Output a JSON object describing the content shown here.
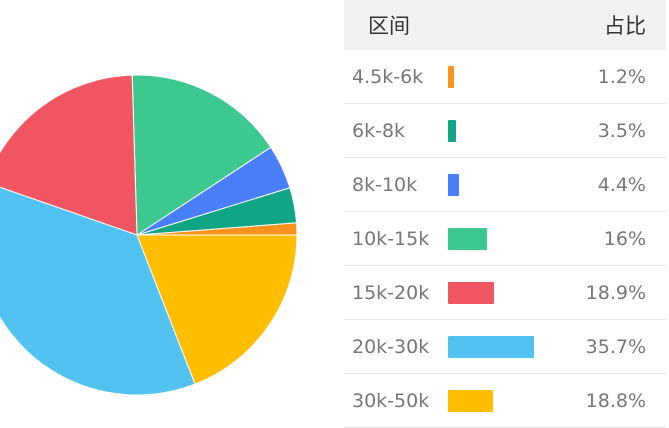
{
  "table": {
    "header_range": "区间",
    "header_share": "占比"
  },
  "chart_data": {
    "type": "pie",
    "categories": [
      "4.5k-6k",
      "6k-8k",
      "8k-10k",
      "10k-15k",
      "15k-20k",
      "20k-30k",
      "30k-50k"
    ],
    "values": [
      1.2,
      3.5,
      4.4,
      16,
      18.9,
      35.7,
      18.8
    ],
    "labels": [
      "1.2%",
      "3.5%",
      "4.4%",
      "16%",
      "18.9%",
      "35.7%",
      "18.8%"
    ],
    "colors": [
      "#f7931e",
      "#0fa585",
      "#4a7ffb",
      "#3cc88f",
      "#ef5661",
      "#52c3f0",
      "#ffbe00"
    ]
  }
}
